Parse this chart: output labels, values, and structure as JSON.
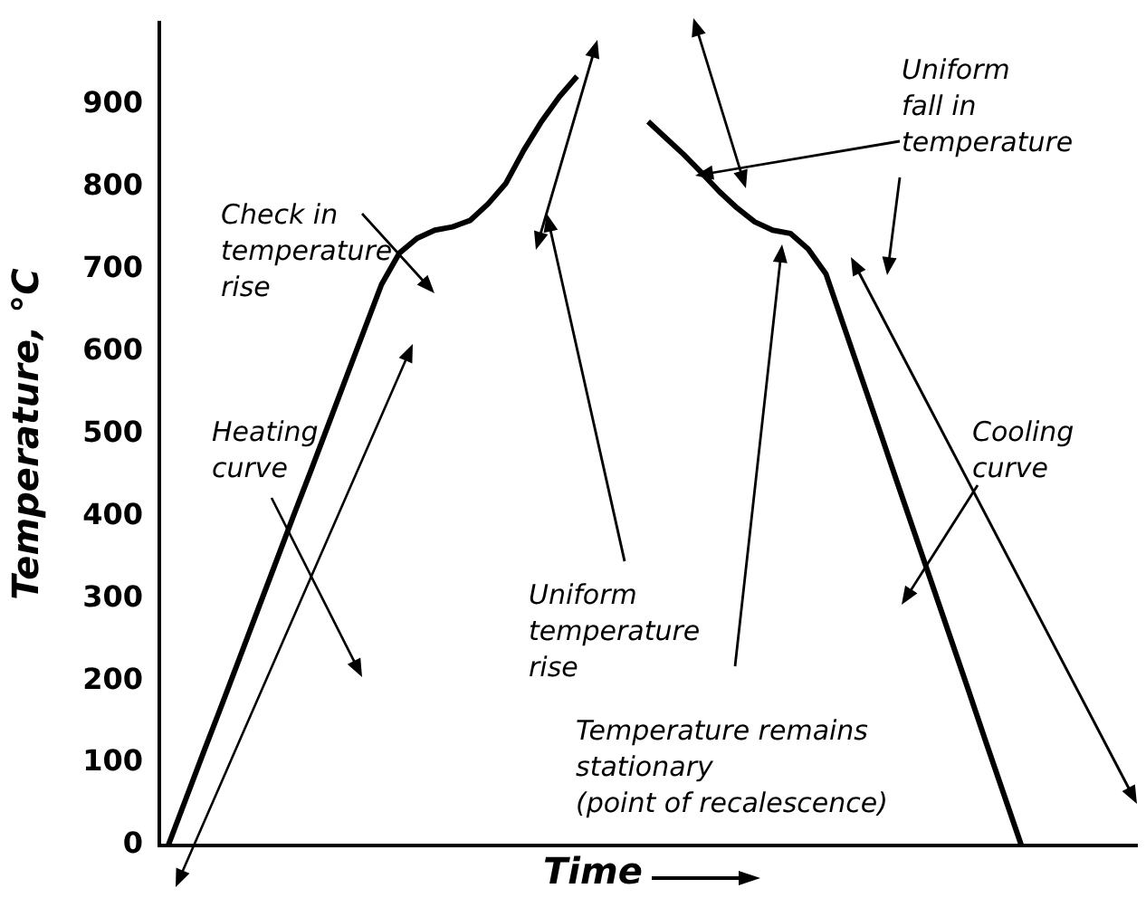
{
  "chart_data": {
    "type": "line",
    "xlabel": "Time",
    "ylabel": "Temperature, °C",
    "categories": [
      null,
      null,
      null,
      null,
      null,
      null,
      null,
      null,
      null,
      null,
      null,
      null,
      null,
      null,
      null,
      null,
      null,
      null,
      null,
      null,
      null,
      null,
      null,
      null,
      null,
      null,
      null,
      null,
      null,
      null,
      null,
      null,
      null,
      null,
      null,
      null,
      null,
      null,
      null,
      null,
      null,
      null,
      null,
      null,
      null,
      null,
      null,
      null,
      null,
      null,
      null,
      null,
      null,
      null,
      null
    ],
    "series": [
      {
        "color": "#000000",
        "values": [
          0,
          57,
          114,
          170,
          227,
          284,
          341,
          398,
          454,
          511,
          568,
          625,
          682,
          720,
          738,
          748,
          752,
          760,
          780,
          805,
          845,
          880,
          910,
          935,
          null,
          null,
          null,
          null,
          null,
          null,
          null,
          null,
          null,
          null,
          null,
          null,
          null,
          null,
          null,
          null,
          null,
          null,
          null,
          null,
          null,
          null,
          null,
          null,
          null,
          null,
          null,
          null,
          null,
          null,
          null
        ]
      },
      {
        "color": "#000000",
        "values": [
          null,
          null,
          null,
          null,
          null,
          null,
          null,
          null,
          null,
          null,
          null,
          null,
          null,
          null,
          null,
          null,
          null,
          null,
          null,
          null,
          null,
          null,
          null,
          null,
          null,
          null,
          null,
          880,
          860,
          840,
          818,
          795,
          775,
          758,
          748,
          744,
          725,
          695,
          632,
          569,
          506,
          442,
          379,
          316,
          253,
          190,
          126,
          63,
          0,
          null,
          null,
          null,
          null,
          null,
          null
        ]
      }
    ],
    "ylim": [
      0,
      1000
    ],
    "yticks": [
      0,
      100,
      200,
      300,
      400,
      500,
      600,
      700,
      800,
      900
    ],
    "grid": false,
    "legend": false,
    "annotations": [
      "Check in\ntemperature\nrise",
      "Heating\ncurve",
      "Uniform\ntemperature\nrise",
      "Temperature remains\nstationary\n(point of recalescence)",
      "Uniform\nfall in\ntemperature",
      "Cooling\ncurve"
    ]
  }
}
